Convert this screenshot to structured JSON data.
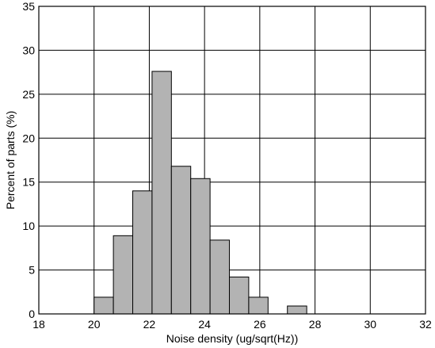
{
  "chart_data": {
    "type": "bar",
    "title": "",
    "xlabel": "Noise density (ug/sqrt(Hz))",
    "ylabel": "Percent of parts (%)",
    "xlim": [
      18,
      32
    ],
    "ylim": [
      0,
      35
    ],
    "xticks": [
      "18",
      "20",
      "22",
      "24",
      "26",
      "28",
      "30",
      "32"
    ],
    "yticks": [
      "0",
      "5",
      "10",
      "15",
      "20",
      "25",
      "30",
      "35"
    ],
    "bin_width": 0.7,
    "bin_centers": [
      20.35,
      21.05,
      21.75,
      22.45,
      23.15,
      23.85,
      24.55,
      25.25,
      25.95,
      26.65,
      27.35,
      28.05,
      28.75,
      29.45
    ],
    "values": [
      1.9,
      8.9,
      14.0,
      27.6,
      16.8,
      15.4,
      8.4,
      4.2,
      1.9,
      0,
      0.9,
      0,
      0,
      0
    ],
    "grid": true,
    "bar_color": "#b3b3b3"
  }
}
